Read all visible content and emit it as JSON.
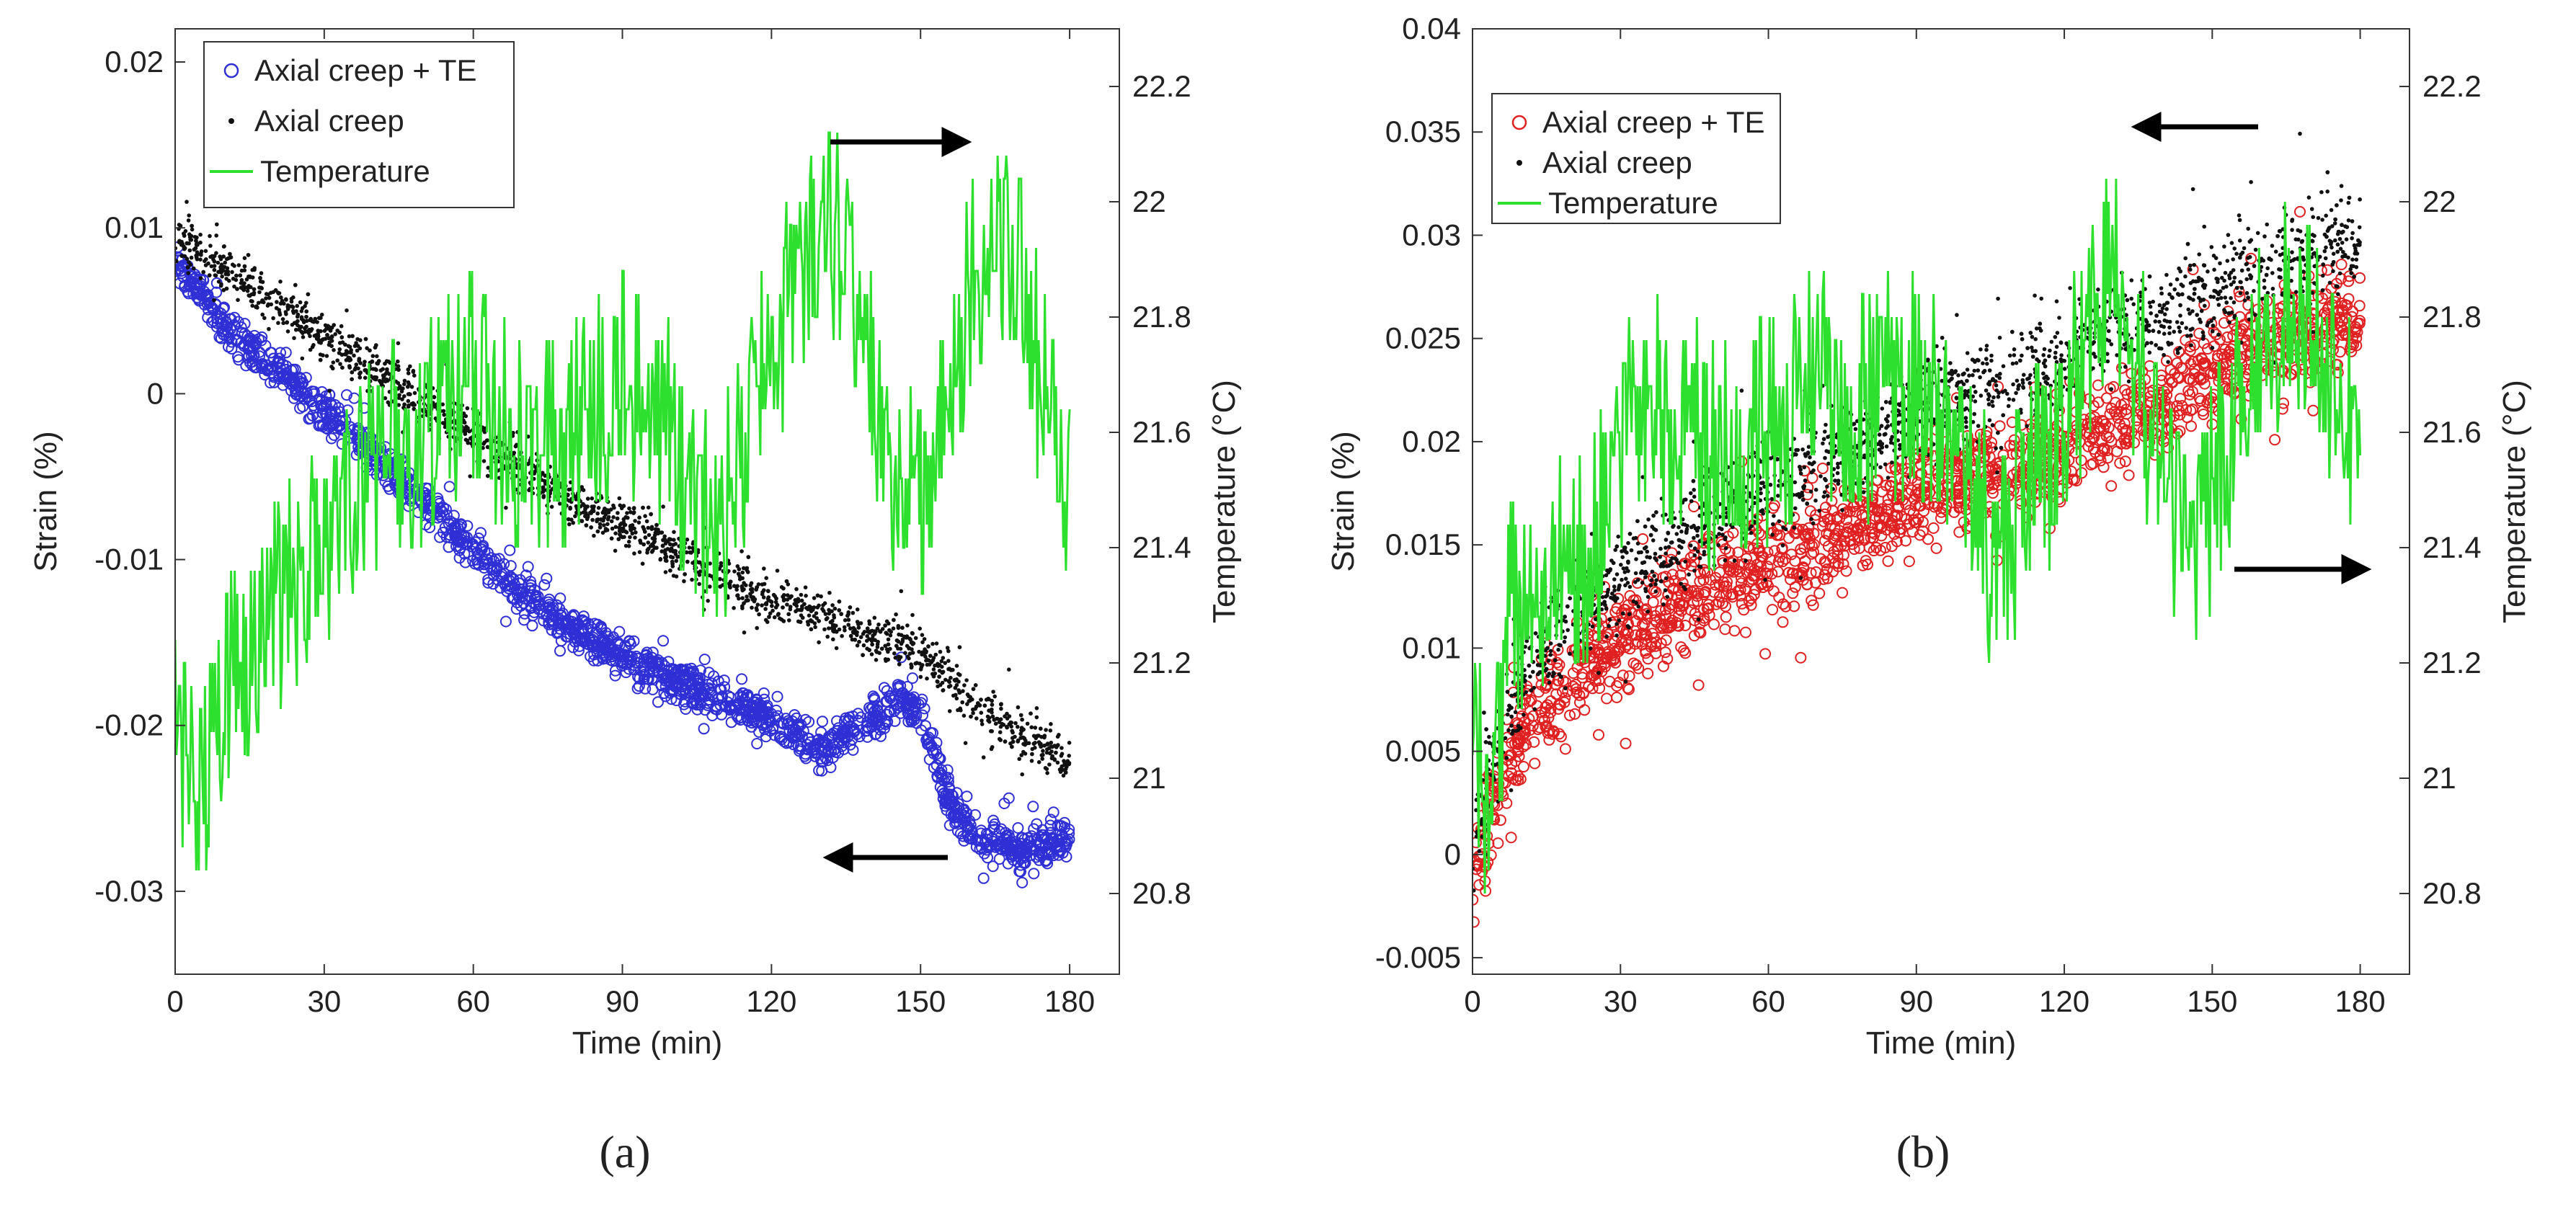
{
  "chart_data": [
    {
      "type": "scatter",
      "panel_label": "(a)",
      "xlabel": "Time (min)",
      "ylabel_left": "Strain (%)",
      "ylabel_right": "Temperature (°C)",
      "xlim": [
        0,
        190
      ],
      "ylim_left": [
        -0.035,
        0.022
      ],
      "ylim_right": [
        20.66,
        22.3
      ],
      "xticks": [
        0,
        30,
        60,
        90,
        120,
        150,
        180
      ],
      "yticks_left": [
        -0.03,
        -0.02,
        -0.01,
        0,
        0.01,
        0.02
      ],
      "ytick_labels_left": [
        "-0.03",
        "-0.02",
        "-0.01",
        "0",
        "0.01",
        "0.02"
      ],
      "yticks_right": [
        20.8,
        21,
        21.2,
        21.4,
        21.6,
        21.8,
        22,
        22.2
      ],
      "ytick_labels_right": [
        "20.8",
        "21",
        "21.2",
        "21.4",
        "21.6",
        "21.8",
        "22",
        "22.2"
      ],
      "legend_position": "top-left",
      "series": [
        {
          "name": "Axial creep + TE",
          "marker": "open-circle",
          "color": "#2f2fd6",
          "axis": "left",
          "x": [
            0,
            10,
            20,
            30,
            40,
            50,
            60,
            70,
            80,
            90,
            100,
            110,
            120,
            130,
            140,
            145,
            150,
            155,
            160,
            170,
            180
          ],
          "y": [
            0.008,
            0.004,
            0.0015,
            -0.001,
            -0.0035,
            -0.0065,
            -0.0095,
            -0.012,
            -0.0142,
            -0.0158,
            -0.0172,
            -0.0185,
            -0.0197,
            -0.0215,
            -0.0195,
            -0.0185,
            -0.019,
            -0.024,
            -0.0265,
            -0.0275,
            -0.0268
          ],
          "spread": 0.0011
        },
        {
          "name": "Axial creep",
          "marker": "dot",
          "color": "#111111",
          "axis": "left",
          "x": [
            0,
            10,
            20,
            30,
            40,
            50,
            60,
            70,
            80,
            90,
            100,
            110,
            120,
            130,
            140,
            150,
            160,
            170,
            180
          ],
          "y": [
            0.0095,
            0.0075,
            0.0055,
            0.0035,
            0.0015,
            -0.0005,
            -0.0025,
            -0.0045,
            -0.0065,
            -0.008,
            -0.0095,
            -0.011,
            -0.0125,
            -0.0135,
            -0.0145,
            -0.0155,
            -0.0185,
            -0.0205,
            -0.0222
          ],
          "spread": 0.0013
        },
        {
          "name": "Temperature",
          "marker": "line",
          "color": "#2ee02e",
          "axis": "right",
          "x": [
            0,
            5,
            10,
            20,
            30,
            40,
            50,
            60,
            70,
            80,
            90,
            100,
            105,
            110,
            120,
            130,
            135,
            140,
            145,
            150,
            160,
            165,
            170,
            175,
            180
          ],
          "y": [
            21.1,
            21.0,
            21.15,
            21.3,
            21.4,
            21.55,
            21.6,
            21.7,
            21.55,
            21.6,
            21.7,
            21.6,
            21.45,
            21.45,
            21.75,
            21.95,
            21.95,
            21.7,
            21.5,
            21.5,
            21.85,
            21.95,
            21.85,
            21.65,
            21.45
          ],
          "spread": 0.15
        }
      ],
      "annotations": [
        "arrow pointing right toward temperature axis",
        "arrow pointing left toward strain axis"
      ]
    },
    {
      "type": "scatter",
      "panel_label": "(b)",
      "xlabel": "Time (min)",
      "ylabel_left": "Strain (%)",
      "ylabel_right": "Temperature (°C)",
      "xlim": [
        0,
        190
      ],
      "ylim_left": [
        -0.0058,
        0.04
      ],
      "ylim_right": [
        20.66,
        22.3
      ],
      "xticks": [
        0,
        30,
        60,
        90,
        120,
        150,
        180
      ],
      "yticks_left": [
        -0.005,
        0,
        0.005,
        0.01,
        0.015,
        0.02,
        0.025,
        0.03,
        0.035,
        0.04
      ],
      "ytick_labels_left": [
        "-0.005",
        "0",
        "0.005",
        "0.01",
        "0.015",
        "0.02",
        "0.025",
        "0.03",
        "0.035",
        "0.04"
      ],
      "yticks_right": [
        20.8,
        21,
        21.2,
        21.4,
        21.6,
        21.8,
        22,
        22.2
      ],
      "ytick_labels_right": [
        "20.8",
        "21",
        "21.2",
        "21.4",
        "21.6",
        "21.8",
        "22",
        "22.2"
      ],
      "legend_position": "top-left",
      "series": [
        {
          "name": "Axial creep + TE",
          "marker": "open-circle",
          "color": "#e02020",
          "axis": "left",
          "x": [
            0,
            5,
            10,
            20,
            30,
            40,
            50,
            60,
            70,
            80,
            90,
            100,
            110,
            120,
            130,
            140,
            150,
            160,
            170,
            180
          ],
          "y": [
            -0.001,
            0.003,
            0.006,
            0.0085,
            0.0105,
            0.012,
            0.0132,
            0.0142,
            0.015,
            0.0162,
            0.0172,
            0.0182,
            0.0188,
            0.0195,
            0.0205,
            0.022,
            0.0235,
            0.0248,
            0.0255,
            0.026
          ],
          "spread": 0.0022
        },
        {
          "name": "Axial creep",
          "marker": "dot",
          "color": "#111111",
          "axis": "left",
          "x": [
            0,
            5,
            10,
            20,
            30,
            40,
            50,
            60,
            70,
            80,
            90,
            100,
            110,
            120,
            130,
            140,
            150,
            160,
            170,
            180
          ],
          "y": [
            0.0005,
            0.005,
            0.0085,
            0.0115,
            0.0135,
            0.015,
            0.0165,
            0.0178,
            0.019,
            0.0202,
            0.0213,
            0.0222,
            0.0232,
            0.024,
            0.0252,
            0.0262,
            0.0272,
            0.0285,
            0.0293,
            0.0298
          ],
          "spread": 0.0022
        },
        {
          "name": "Temperature",
          "marker": "line",
          "color": "#2ee02e",
          "axis": "right",
          "x": [
            0,
            3,
            8,
            15,
            25,
            30,
            40,
            50,
            60,
            70,
            80,
            90,
            100,
            105,
            110,
            120,
            125,
            130,
            135,
            140,
            145,
            150,
            160,
            165,
            170,
            175,
            180
          ],
          "y": [
            21.1,
            20.9,
            21.3,
            21.35,
            21.4,
            21.6,
            21.65,
            21.55,
            21.6,
            21.7,
            21.65,
            21.7,
            21.6,
            21.4,
            21.45,
            21.6,
            21.8,
            21.95,
            21.7,
            21.55,
            21.4,
            21.5,
            21.75,
            21.8,
            21.75,
            21.7,
            21.5
          ],
          "spread": 0.16
        }
      ],
      "annotations": [
        "arrow pointing left toward strain axis",
        "arrow pointing right toward temperature axis"
      ]
    }
  ]
}
